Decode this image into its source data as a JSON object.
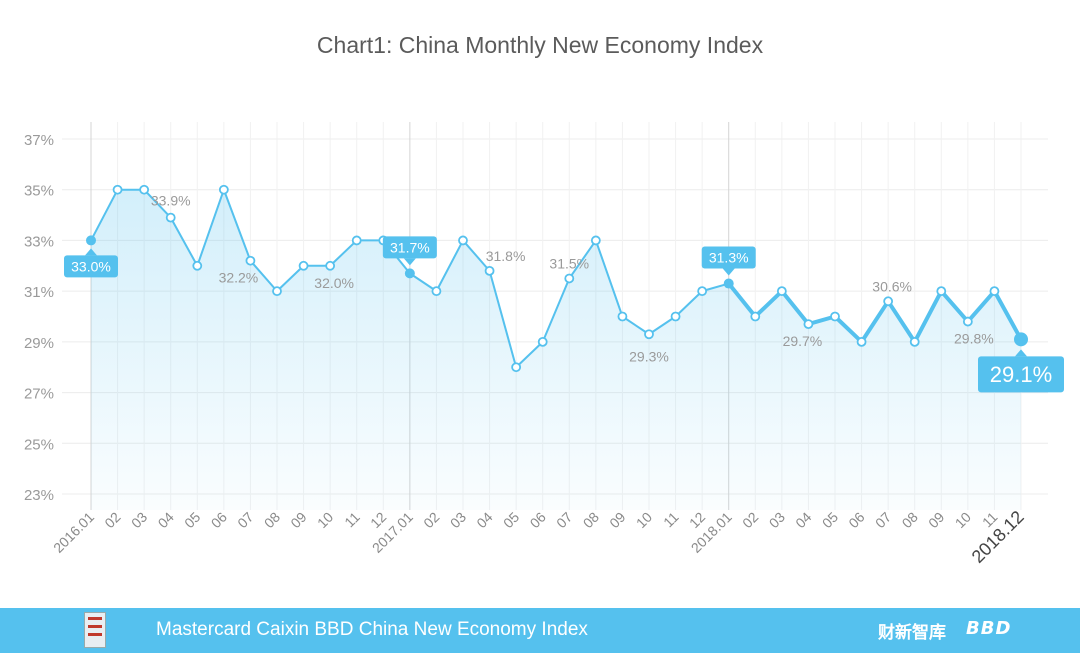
{
  "chart_data": {
    "type": "line",
    "title": "Chart1: China Monthly New Economy Index",
    "xlabel": "",
    "ylabel": "",
    "ylim": [
      22.5,
      38
    ],
    "yticks": [
      37,
      35,
      33,
      31,
      29,
      27,
      25,
      23
    ],
    "ytick_labels": [
      "37%",
      "35%",
      "33%",
      "31%",
      "29%",
      "27%",
      "25%",
      "23%"
    ],
    "categories": [
      "2016.01",
      "02",
      "03",
      "04",
      "05",
      "06",
      "07",
      "08",
      "09",
      "10",
      "11",
      "12",
      "2017.01",
      "02",
      "03",
      "04",
      "05",
      "06",
      "07",
      "08",
      "09",
      "10",
      "11",
      "12",
      "2018.01",
      "02",
      "03",
      "04",
      "05",
      "06",
      "07",
      "08",
      "09",
      "10",
      "11",
      "2018.12"
    ],
    "series": [
      {
        "values": [
          33.0,
          35.0,
          35.0,
          33.9,
          32.0,
          35.0,
          32.2,
          31.0,
          32.0,
          32.0,
          33.0,
          33.0,
          31.7,
          31.0,
          33.0,
          31.8,
          28.0,
          29.0,
          31.5,
          33.0,
          30.0,
          29.3,
          30.0,
          31.0,
          31.3,
          30.0,
          31.0,
          29.7,
          30.0,
          29.0,
          30.6,
          29.0,
          31.0,
          29.8,
          31.0,
          29.1
        ],
        "color": "#55c1ee"
      }
    ],
    "labels": [
      {
        "index": 3,
        "text": "33.9%"
      },
      {
        "index": 6,
        "text": "32.2%"
      },
      {
        "index": 9,
        "text": "32.0%"
      },
      {
        "index": 15,
        "text": "31.8%"
      },
      {
        "index": 18,
        "text": "31.5%"
      },
      {
        "index": 21,
        "text": "29.3%"
      },
      {
        "index": 27,
        "text": "29.7%"
      },
      {
        "index": 30,
        "text": "30.6%"
      },
      {
        "index": 33,
        "text": "29.8%"
      }
    ],
    "callouts": [
      {
        "index": 0,
        "text": "33.0%"
      },
      {
        "index": 12,
        "text": "31.7%"
      },
      {
        "index": 24,
        "text": "31.3%"
      },
      {
        "index": 35,
        "text": "29.1%"
      }
    ],
    "grid": true,
    "line_color": "#55c1ee",
    "label_color": "#9a9a9a"
  },
  "footer": {
    "text": "Mastercard Caixin BBD China New Economy Index",
    "brand_caixin": "财新智库",
    "brand_bbd": "BBD",
    "color": "#55c1ee"
  }
}
